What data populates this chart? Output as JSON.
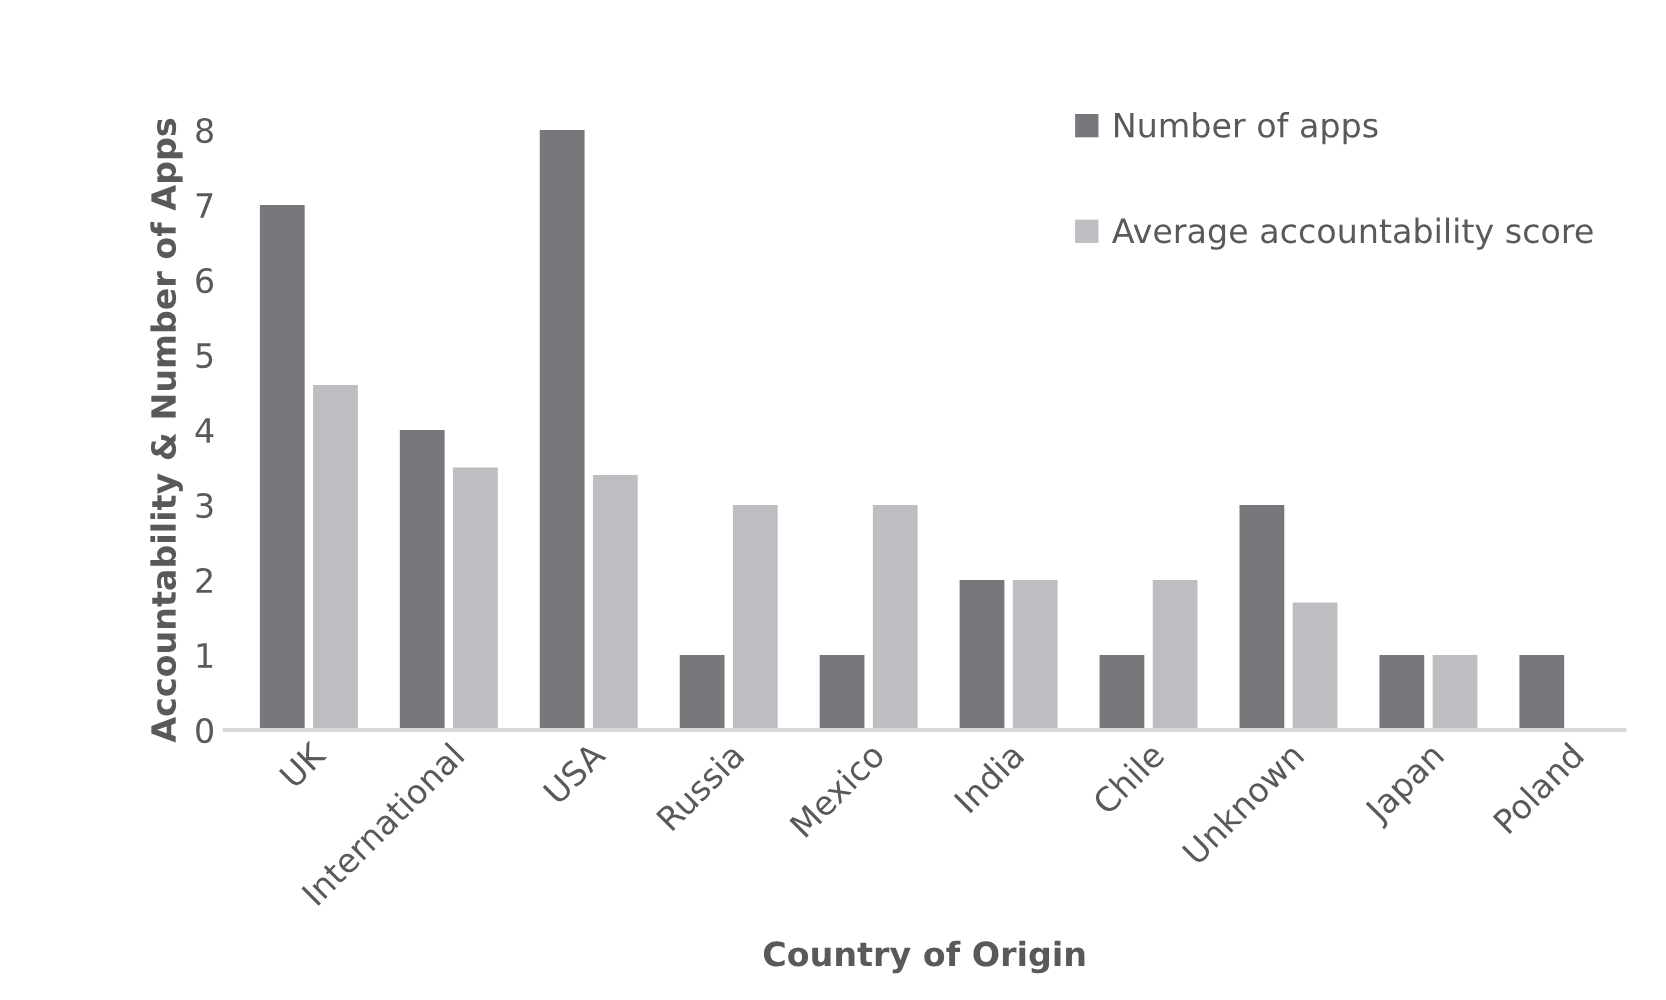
{
  "chart_data": {
    "type": "bar",
    "xlabel": "Country of Origin",
    "ylabel": "Accountability & Number of Apps",
    "categories": [
      "UK",
      "International",
      "USA",
      "Russia",
      "Mexico",
      "India",
      "Chile",
      "Unknown",
      "Japan",
      "Poland"
    ],
    "series": [
      {
        "name": "Number of apps",
        "color": "#77787c",
        "values": [
          7,
          4,
          8,
          1,
          1,
          2,
          1,
          3,
          1,
          1
        ]
      },
      {
        "name": "Average accountability score",
        "color": "#bdbec2",
        "values": [
          4.6,
          3.5,
          3.4,
          3,
          3,
          2,
          2,
          1.7,
          1,
          null
        ]
      }
    ],
    "ylim": [
      0,
      8
    ],
    "yticks": [
      0,
      1,
      2,
      3,
      4,
      5,
      6,
      7,
      8
    ],
    "grid": false,
    "legend": "top right"
  }
}
